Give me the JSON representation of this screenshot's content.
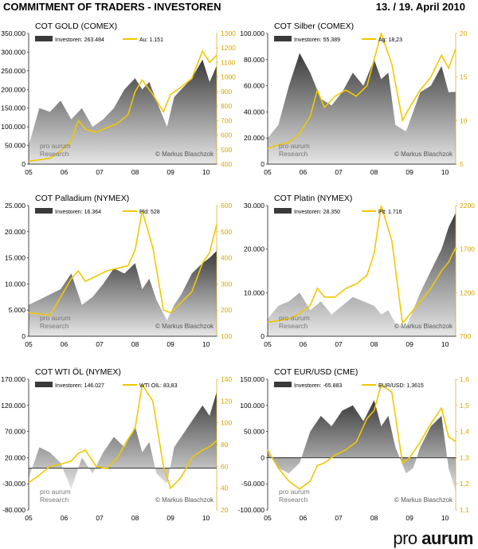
{
  "header": {
    "title": "COMMITMENT OF TRADERS - INVESTOREN",
    "date": "13. /  19. April 2010"
  },
  "brand": {
    "word1": "pro",
    "word2": "aurum"
  },
  "colors": {
    "price_line": "#F0C800",
    "area_dark": "#3a3a3a",
    "area_light": "#e6e6e6",
    "axis_right": "#D9A400"
  },
  "chart_data": [
    {
      "id": "gold",
      "type": "area+line",
      "title": "COT GOLD (COMEX)",
      "legend": {
        "series1": "Investoren: 263.484",
        "series2": "Au: 1.151"
      },
      "watermark": {
        "line1": "pro aurum",
        "line2": "Research",
        "credit": "© Markus Blaschzok"
      },
      "x_ticks": [
        "05",
        "06",
        "07",
        "08",
        "09",
        "10"
      ],
      "left_axis": {
        "min": 0,
        "max": 350000,
        "ticks": [
          "0",
          "50.000",
          "100.000",
          "150.000",
          "200.000",
          "250.000",
          "300.000",
          "350.000"
        ]
      },
      "right_axis": {
        "min": 400,
        "max": 1300,
        "ticks": [
          "400",
          "500",
          "600",
          "700",
          "800",
          "900",
          "1000",
          "1100",
          "1200",
          "1300"
        ]
      },
      "x_range": [
        2005,
        2010.3
      ],
      "series": [
        {
          "name": "Investoren",
          "x": [
            2005,
            2005.3,
            2005.6,
            2005.9,
            2006.2,
            2006.5,
            2006.8,
            2007.1,
            2007.4,
            2007.7,
            2008.0,
            2008.2,
            2008.4,
            2008.6,
            2008.9,
            2009.1,
            2009.3,
            2009.6,
            2009.9,
            2010.1,
            2010.3
          ],
          "values": [
            50000,
            150000,
            140000,
            170000,
            120000,
            150000,
            100000,
            120000,
            150000,
            200000,
            230000,
            200000,
            220000,
            170000,
            100000,
            180000,
            200000,
            230000,
            280000,
            220000,
            263484
          ]
        },
        {
          "name": "Au",
          "x": [
            2005,
            2005.3,
            2005.6,
            2005.9,
            2006.2,
            2006.4,
            2006.6,
            2006.9,
            2007.2,
            2007.5,
            2007.8,
            2008.0,
            2008.2,
            2008.5,
            2008.8,
            2009.0,
            2009.3,
            2009.6,
            2009.9,
            2010.1,
            2010.3
          ],
          "values": [
            420,
            430,
            440,
            490,
            560,
            700,
            640,
            620,
            650,
            680,
            740,
            900,
            980,
            880,
            760,
            880,
            930,
            990,
            1180,
            1100,
            1151
          ]
        }
      ]
    },
    {
      "id": "silber",
      "type": "area+line",
      "title": "COT Silber (COMEX)",
      "legend": {
        "series1": "Investoren: 55.389",
        "series2": "Ag:  18,23"
      },
      "watermark": {
        "line1": "pro aurum",
        "line2": "Research",
        "credit": "© Markus Blaschzok"
      },
      "x_ticks": [
        "05",
        "06",
        "07",
        "08",
        "09",
        "10"
      ],
      "left_axis": {
        "min": 0,
        "max": 100000,
        "ticks": [
          "0",
          "20.000",
          "40.000",
          "60.000",
          "80.000",
          "100.000"
        ]
      },
      "right_axis": {
        "min": 5,
        "max": 20,
        "ticks": [
          "5",
          "10",
          "15",
          "20"
        ]
      },
      "x_range": [
        2005,
        2010.3
      ],
      "series": [
        {
          "name": "Investoren",
          "x": [
            2005,
            2005.3,
            2005.6,
            2005.9,
            2006.2,
            2006.5,
            2006.8,
            2007.1,
            2007.4,
            2007.7,
            2008.0,
            2008.2,
            2008.4,
            2008.6,
            2008.9,
            2009.1,
            2009.3,
            2009.6,
            2009.9,
            2010.1,
            2010.3
          ],
          "values": [
            20000,
            30000,
            60000,
            85000,
            70000,
            50000,
            45000,
            55000,
            70000,
            60000,
            80000,
            65000,
            70000,
            30000,
            25000,
            40000,
            55000,
            60000,
            75000,
            55000,
            55389
          ]
        },
        {
          "name": "Ag",
          "x": [
            2005,
            2005.3,
            2005.6,
            2005.9,
            2006.2,
            2006.4,
            2006.6,
            2006.9,
            2007.2,
            2007.5,
            2007.8,
            2008.0,
            2008.2,
            2008.5,
            2008.8,
            2009.0,
            2009.3,
            2009.6,
            2009.9,
            2010.1,
            2010.3
          ],
          "values": [
            6.8,
            7.2,
            7.5,
            8.5,
            10.5,
            13.5,
            11.5,
            12.8,
            13.5,
            12.8,
            14,
            17,
            20,
            16.5,
            10,
            11.5,
            13.5,
            15,
            17.5,
            16,
            18.23
          ]
        }
      ]
    },
    {
      "id": "palladium",
      "type": "area+line",
      "title": "COT Palladium (NYMEX)",
      "legend": {
        "series1": "Investoren:  16.364",
        "series2": "Pld:  528"
      },
      "watermark": {
        "line1": "pro aurum",
        "line2": "Research",
        "credit": "© Markus Blaschzok"
      },
      "x_ticks": [
        "05",
        "06",
        "07",
        "08",
        "09",
        "10"
      ],
      "left_axis": {
        "min": 0,
        "max": 25000,
        "ticks": [
          "0",
          "5.000",
          "10.000",
          "15.000",
          "20.000",
          "25.000"
        ]
      },
      "right_axis": {
        "min": 100,
        "max": 600,
        "ticks": [
          "100",
          "200",
          "300",
          "400",
          "500",
          "600"
        ]
      },
      "x_range": [
        2005,
        2010.3
      ],
      "series": [
        {
          "name": "Investoren",
          "x": [
            2005,
            2005.3,
            2005.6,
            2005.9,
            2006.2,
            2006.5,
            2006.8,
            2007.1,
            2007.4,
            2007.7,
            2008.0,
            2008.2,
            2008.4,
            2008.6,
            2008.9,
            2009.1,
            2009.3,
            2009.6,
            2009.9,
            2010.1,
            2010.3
          ],
          "values": [
            6000,
            7000,
            8000,
            9000,
            12000,
            6000,
            7500,
            10000,
            13000,
            12000,
            14000,
            9000,
            11000,
            7000,
            3000,
            6000,
            8000,
            12000,
            14000,
            15000,
            16364
          ]
        },
        {
          "name": "Pld",
          "x": [
            2005,
            2005.3,
            2005.6,
            2005.9,
            2006.2,
            2006.4,
            2006.6,
            2006.9,
            2007.2,
            2007.5,
            2007.8,
            2008.0,
            2008.2,
            2008.5,
            2008.8,
            2009.0,
            2009.3,
            2009.6,
            2009.9,
            2010.1,
            2010.3
          ],
          "values": [
            190,
            185,
            180,
            250,
            320,
            350,
            310,
            330,
            350,
            360,
            370,
            430,
            580,
            440,
            200,
            190,
            230,
            270,
            380,
            420,
            528
          ]
        }
      ]
    },
    {
      "id": "platin",
      "type": "area+line",
      "title": "COT Platin (NYMEX)",
      "legend": {
        "series1": "Investoren: 28.350",
        "series2": "Plt:  1.716"
      },
      "watermark": {
        "line1": "pro aurum",
        "line2": "Research",
        "credit": "© Markus Blaschzok"
      },
      "x_ticks": [
        "05",
        "06",
        "07",
        "08",
        "09",
        "10"
      ],
      "left_axis": {
        "min": 0,
        "max": 30000,
        "ticks": [
          "0",
          "10.000",
          "20.000",
          "30.000"
        ]
      },
      "right_axis": {
        "min": 700,
        "max": 2200,
        "ticks": [
          "700",
          "1200",
          "1700",
          "2200"
        ]
      },
      "x_range": [
        2005,
        2010.3
      ],
      "series": [
        {
          "name": "Investoren",
          "x": [
            2005,
            2005.3,
            2005.6,
            2005.9,
            2006.2,
            2006.5,
            2006.8,
            2007.1,
            2007.4,
            2007.7,
            2008.0,
            2008.2,
            2008.4,
            2008.6,
            2008.9,
            2009.1,
            2009.3,
            2009.6,
            2009.9,
            2010.1,
            2010.3
          ],
          "values": [
            4000,
            7000,
            8000,
            10000,
            6000,
            8000,
            5000,
            7000,
            9000,
            8000,
            7000,
            5000,
            6000,
            3000,
            2000,
            6000,
            10000,
            15000,
            20000,
            25000,
            28350
          ]
        },
        {
          "name": "Plt",
          "x": [
            2005,
            2005.3,
            2005.6,
            2005.9,
            2006.2,
            2006.4,
            2006.6,
            2006.9,
            2007.2,
            2007.5,
            2007.8,
            2008.0,
            2008.2,
            2008.5,
            2008.8,
            2009.0,
            2009.3,
            2009.6,
            2009.9,
            2010.1,
            2010.3
          ],
          "values": [
            860,
            880,
            900,
            960,
            1050,
            1250,
            1150,
            1150,
            1250,
            1300,
            1400,
            1650,
            2200,
            1800,
            850,
            950,
            1100,
            1250,
            1450,
            1550,
            1716
          ]
        }
      ]
    },
    {
      "id": "wti",
      "type": "area+line",
      "title": "COT WTI ÖL (NYMEX)",
      "legend": {
        "series1": "Investoren:  146.027",
        "series2": "WTI OIL: 83,83"
      },
      "watermark": {
        "line1": "pro aurum",
        "line2": "Research",
        "credit": "© Markus Blaschzok"
      },
      "x_ticks": [
        "05",
        "06",
        "07",
        "08",
        "09",
        "10"
      ],
      "left_axis": {
        "min": -80000,
        "max": 170000,
        "ticks": [
          "-80.000",
          "-30.000",
          "20.000",
          "70.000",
          "120.000",
          "170.000"
        ]
      },
      "right_axis": {
        "min": 20,
        "max": 140,
        "ticks": [
          "20",
          "40",
          "60",
          "80",
          "100",
          "120",
          "140"
        ]
      },
      "x_range": [
        2005,
        2010.3
      ],
      "series": [
        {
          "name": "Investoren",
          "x": [
            2005,
            2005.3,
            2005.6,
            2005.9,
            2006.2,
            2006.5,
            2006.8,
            2007.1,
            2007.4,
            2007.7,
            2008.0,
            2008.2,
            2008.4,
            2008.6,
            2008.9,
            2009.1,
            2009.3,
            2009.6,
            2009.9,
            2010.1,
            2010.3
          ],
          "values": [
            -20000,
            40000,
            30000,
            10000,
            -40000,
            20000,
            -10000,
            30000,
            60000,
            40000,
            80000,
            30000,
            50000,
            -10000,
            -30000,
            40000,
            60000,
            90000,
            120000,
            100000,
            146027
          ]
        },
        {
          "name": "WTI OIL",
          "x": [
            2005,
            2005.3,
            2005.6,
            2005.9,
            2006.2,
            2006.4,
            2006.6,
            2006.9,
            2007.2,
            2007.5,
            2007.8,
            2008.0,
            2008.2,
            2008.5,
            2008.8,
            2009.0,
            2009.3,
            2009.6,
            2009.9,
            2010.1,
            2010.3
          ],
          "values": [
            45,
            52,
            60,
            62,
            65,
            72,
            75,
            60,
            58,
            68,
            85,
            95,
            135,
            120,
            60,
            40,
            50,
            68,
            75,
            78,
            83.83
          ]
        }
      ]
    },
    {
      "id": "eurusd",
      "type": "area+line",
      "title": "COT EUR/USD (CME)",
      "legend": {
        "series1": "Investoren: -65.883",
        "series2": "EUR/USD:  1,3615"
      },
      "watermark": {
        "line1": "pro aurum",
        "line2": "Research",
        "credit": "© Markus Blaschzok"
      },
      "x_ticks": [
        "05",
        "06",
        "07",
        "08",
        "09",
        "10"
      ],
      "left_axis": {
        "min": -100000,
        "max": 150000,
        "ticks": [
          "-100.000",
          "-50.000",
          "0",
          "50.000",
          "100.000",
          "150.000"
        ]
      },
      "right_axis": {
        "min": 1.1,
        "max": 1.6,
        "ticks": [
          "1,1",
          "1,2",
          "1,3",
          "1,4",
          "1,5",
          "1,6"
        ]
      },
      "x_range": [
        2005,
        2010.3
      ],
      "series": [
        {
          "name": "Investoren",
          "x": [
            2005,
            2005.3,
            2005.6,
            2005.9,
            2006.2,
            2006.5,
            2006.8,
            2007.1,
            2007.4,
            2007.7,
            2008.0,
            2008.2,
            2008.4,
            2008.6,
            2008.9,
            2009.1,
            2009.3,
            2009.6,
            2009.9,
            2010.1,
            2010.3
          ],
          "values": [
            10000,
            -20000,
            -30000,
            -10000,
            50000,
            80000,
            60000,
            90000,
            100000,
            70000,
            110000,
            60000,
            80000,
            20000,
            -30000,
            -20000,
            20000,
            60000,
            80000,
            -20000,
            -65883
          ]
        },
        {
          "name": "EUR/USD",
          "x": [
            2005,
            2005.3,
            2005.6,
            2005.9,
            2006.2,
            2006.4,
            2006.6,
            2006.9,
            2007.2,
            2007.5,
            2007.8,
            2008.0,
            2008.2,
            2008.5,
            2008.8,
            2009.0,
            2009.3,
            2009.6,
            2009.9,
            2010.1,
            2010.3
          ],
          "values": [
            1.33,
            1.26,
            1.21,
            1.18,
            1.21,
            1.27,
            1.28,
            1.31,
            1.33,
            1.36,
            1.45,
            1.48,
            1.58,
            1.55,
            1.28,
            1.3,
            1.36,
            1.43,
            1.49,
            1.38,
            1.3615
          ]
        }
      ]
    }
  ]
}
